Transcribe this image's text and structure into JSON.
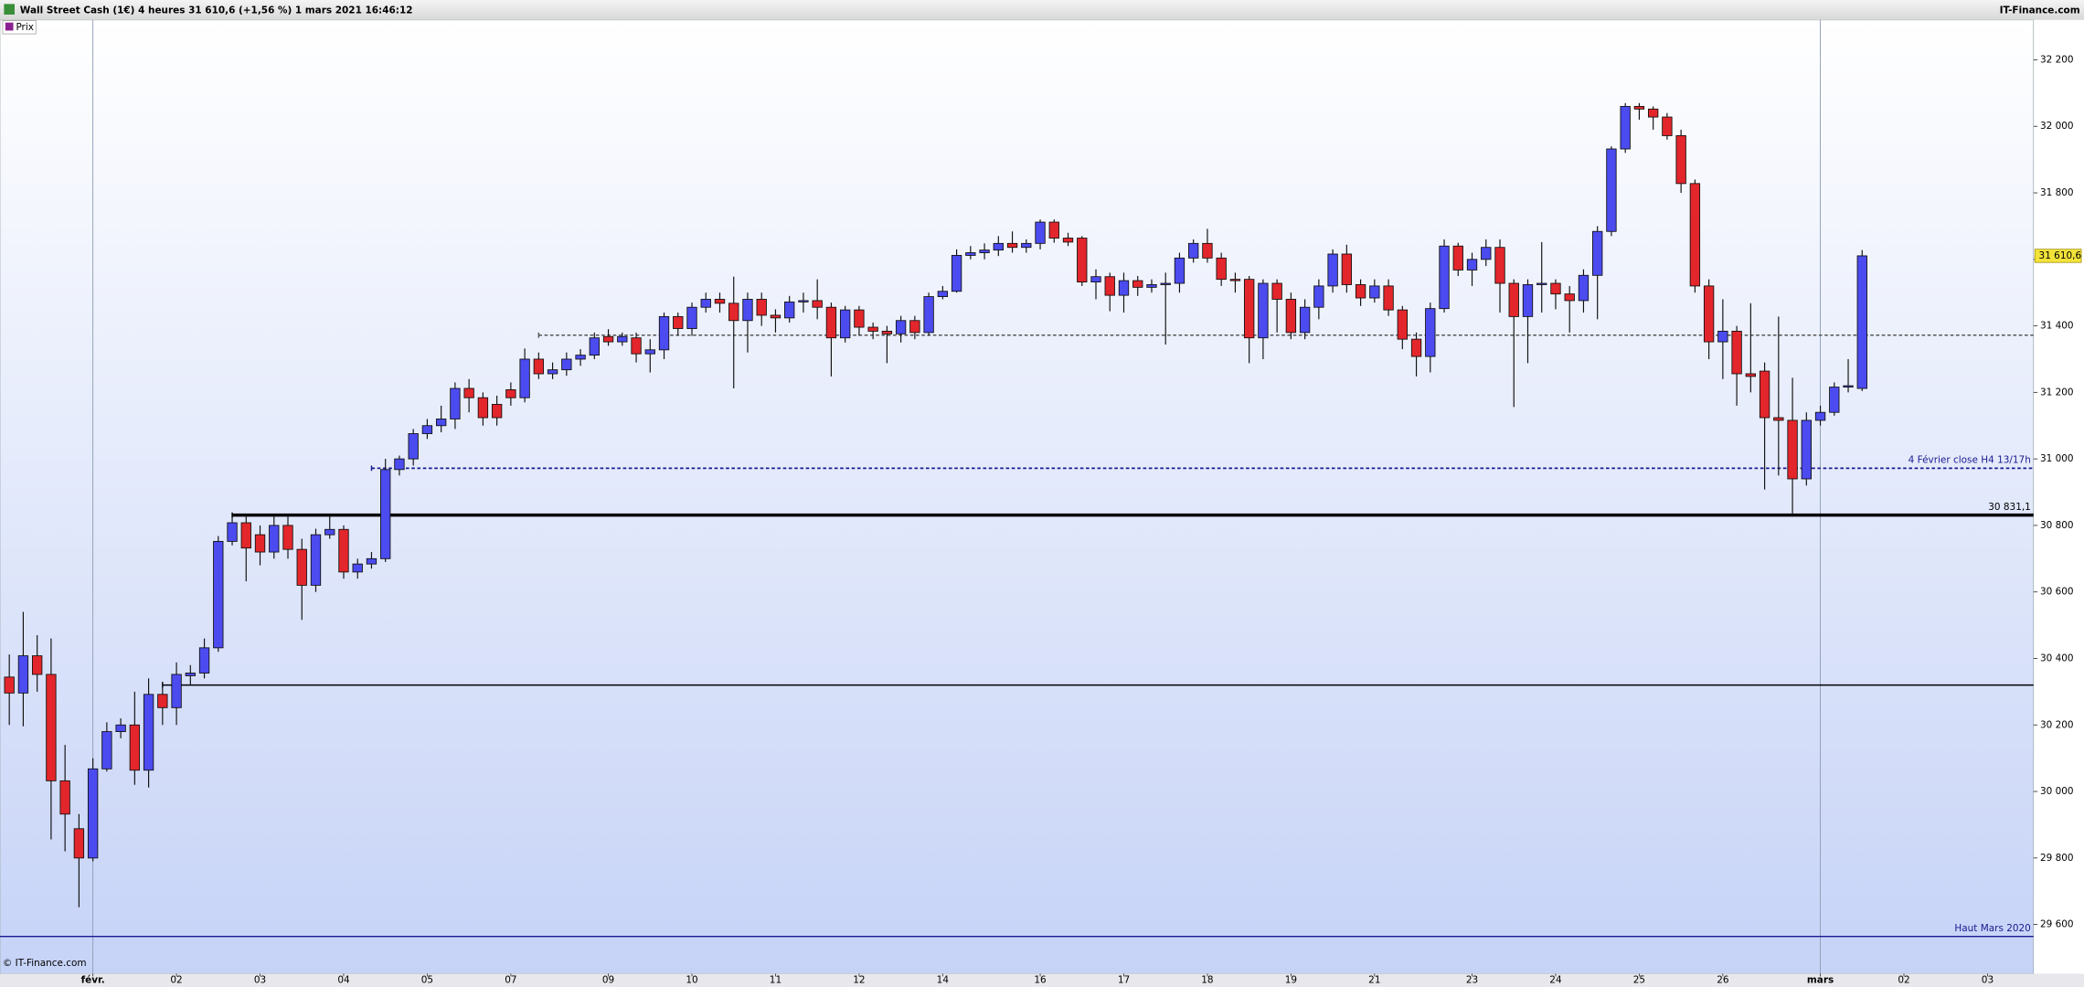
{
  "chart_data": {
    "type": "candlestick",
    "title": "Wall Street Cash (1€) 4 heures 31 610,6 (+1,56 %) 1 mars 2021 16:46:12",
    "brand": "IT-Finance.com",
    "footer": "© IT-Finance.com",
    "legend": "Prix",
    "up_color": "#4b4bf0",
    "down_color": "#e3262b",
    "xlim": [
      -0.668,
      145.3
    ],
    "ylim": [
      29452,
      32320
    ],
    "xticks": [
      {
        "value": 6,
        "label": "févr."
      },
      {
        "value": 12,
        "label": "02"
      },
      {
        "value": 18,
        "label": "03"
      },
      {
        "value": 24,
        "label": "04"
      },
      {
        "value": 30,
        "label": "05"
      },
      {
        "value": 36,
        "label": "07"
      },
      {
        "value": 43,
        "label": "09"
      },
      {
        "value": 49,
        "label": "10"
      },
      {
        "value": 55,
        "label": "11"
      },
      {
        "value": 61,
        "label": "12"
      },
      {
        "value": 67,
        "label": "14"
      },
      {
        "value": 74,
        "label": "16"
      },
      {
        "value": 80,
        "label": "17"
      },
      {
        "value": 86,
        "label": "18"
      },
      {
        "value": 92,
        "label": "19"
      },
      {
        "value": 98,
        "label": "21"
      },
      {
        "value": 105,
        "label": "23"
      },
      {
        "value": 111,
        "label": "24"
      },
      {
        "value": 117,
        "label": "25"
      },
      {
        "value": 123,
        "label": "26"
      },
      {
        "value": 130,
        "label": "mars"
      },
      {
        "value": 136,
        "label": "02"
      },
      {
        "value": 142,
        "label": "03"
      }
    ],
    "yticks": [
      {
        "value": 29600,
        "label": "29 600"
      },
      {
        "value": 29800,
        "label": "29 800"
      },
      {
        "value": 30000,
        "label": "30 000"
      },
      {
        "value": 30200,
        "label": "30 200"
      },
      {
        "value": 30400,
        "label": "30 400"
      },
      {
        "value": 30600,
        "label": "30 600"
      },
      {
        "value": 30800,
        "label": "30 800"
      },
      {
        "value": 31000,
        "label": "31 000"
      },
      {
        "value": 31200,
        "label": "31 200"
      },
      {
        "value": 31400,
        "label": "31 400"
      },
      {
        "value": 31600,
        "label": "31 600"
      },
      {
        "value": 31800,
        "label": "31 800"
      },
      {
        "value": 32000,
        "label": "32 000"
      },
      {
        "value": 32200,
        "label": "32 200"
      }
    ],
    "last_price": {
      "value": 31610.6,
      "label": "31 610,6"
    },
    "lines": [
      {
        "value": 31372,
        "start": 38,
        "style": "dashed",
        "color": "#555555"
      },
      {
        "value": 30972,
        "start": 26,
        "style": "dashed",
        "color": "#1a1a90",
        "label": "4 Février  close H4 13/17h"
      },
      {
        "value": 30831.1,
        "start": 16,
        "style": "thick",
        "color": "#000000",
        "label": "30 831,1"
      },
      {
        "value": 30320,
        "start": 11,
        "style": "solid",
        "color": "#000000"
      },
      {
        "value": 29564,
        "style": "solid",
        "color": "#1a1a90",
        "label": "Haut Mars 2020"
      }
    ],
    "ohlc": [
      [
        30344,
        30412,
        30200,
        30296
      ],
      [
        30296,
        30540,
        30196,
        30408
      ],
      [
        30408,
        30470,
        30300,
        30352
      ],
      [
        30352,
        30460,
        29856,
        30032
      ],
      [
        30032,
        30140,
        29820,
        29932
      ],
      [
        29888,
        29932,
        29652,
        29800
      ],
      [
        29800,
        30100,
        29790,
        30068
      ],
      [
        30068,
        30208,
        30060,
        30180
      ],
      [
        30180,
        30220,
        30160,
        30200
      ],
      [
        30200,
        30300,
        30020,
        30064
      ],
      [
        30064,
        30340,
        30012,
        30292
      ],
      [
        30292,
        30330,
        30200,
        30252
      ],
      [
        30252,
        30388,
        30200,
        30352
      ],
      [
        30348,
        30380,
        30320,
        30356
      ],
      [
        30356,
        30460,
        30340,
        30432
      ],
      [
        30432,
        30768,
        30420,
        30752
      ],
      [
        30752,
        30828,
        30740,
        30808
      ],
      [
        30808,
        30830,
        30632,
        30732
      ],
      [
        30772,
        30800,
        30680,
        30720
      ],
      [
        30720,
        30830,
        30700,
        30800
      ],
      [
        30800,
        30830,
        30700,
        30728
      ],
      [
        30728,
        30760,
        30516,
        30620
      ],
      [
        30620,
        30790,
        30600,
        30772
      ],
      [
        30772,
        30828,
        30760,
        30788
      ],
      [
        30788,
        30800,
        30640,
        30660
      ],
      [
        30660,
        30700,
        30640,
        30684
      ],
      [
        30684,
        30720,
        30670,
        30700
      ],
      [
        30700,
        31000,
        30690,
        30968
      ],
      [
        30968,
        31010,
        30950,
        31000
      ],
      [
        31000,
        31090,
        30980,
        31076
      ],
      [
        31076,
        31120,
        31060,
        31100
      ],
      [
        31100,
        31160,
        31080,
        31120
      ],
      [
        31120,
        31230,
        31090,
        31212
      ],
      [
        31212,
        31240,
        31140,
        31184
      ],
      [
        31184,
        31200,
        31100,
        31124
      ],
      [
        31164,
        31190,
        31100,
        31124
      ],
      [
        31208,
        31230,
        31160,
        31184
      ],
      [
        31184,
        31332,
        31170,
        31300
      ],
      [
        31300,
        31320,
        31240,
        31256
      ],
      [
        31256,
        31290,
        31240,
        31268
      ],
      [
        31268,
        31320,
        31250,
        31300
      ],
      [
        31300,
        31330,
        31280,
        31312
      ],
      [
        31312,
        31380,
        31300,
        31364
      ],
      [
        31368,
        31390,
        31340,
        31352
      ],
      [
        31352,
        31380,
        31340,
        31368
      ],
      [
        31364,
        31380,
        31290,
        31316
      ],
      [
        31316,
        31360,
        31260,
        31328
      ],
      [
        31328,
        31440,
        31300,
        31428
      ],
      [
        31428,
        31440,
        31370,
        31392
      ],
      [
        31392,
        31470,
        31370,
        31456
      ],
      [
        31456,
        31500,
        31440,
        31480
      ],
      [
        31480,
        31500,
        31440,
        31468
      ],
      [
        31468,
        31548,
        31212,
        31416
      ],
      [
        31416,
        31500,
        31320,
        31480
      ],
      [
        31480,
        31500,
        31400,
        31432
      ],
      [
        31432,
        31450,
        31380,
        31424
      ],
      [
        31424,
        31490,
        31410,
        31472
      ],
      [
        31472,
        31500,
        31440,
        31476
      ],
      [
        31476,
        31540,
        31420,
        31456
      ],
      [
        31456,
        31470,
        31248,
        31364
      ],
      [
        31364,
        31460,
        31350,
        31448
      ],
      [
        31448,
        31460,
        31370,
        31396
      ],
      [
        31396,
        31410,
        31360,
        31384
      ],
      [
        31384,
        31400,
        31288,
        31376
      ],
      [
        31376,
        31430,
        31350,
        31416
      ],
      [
        31416,
        31430,
        31360,
        31380
      ],
      [
        31380,
        31500,
        31370,
        31488
      ],
      [
        31488,
        31520,
        31480,
        31504
      ],
      [
        31504,
        31630,
        31500,
        31612
      ],
      [
        31612,
        31640,
        31600,
        31620
      ],
      [
        31620,
        31648,
        31600,
        31628
      ],
      [
        31628,
        31670,
        31610,
        31648
      ],
      [
        31648,
        31684,
        31620,
        31636
      ],
      [
        31636,
        31660,
        31620,
        31648
      ],
      [
        31648,
        31720,
        31630,
        31712
      ],
      [
        31712,
        31720,
        31650,
        31664
      ],
      [
        31664,
        31680,
        31640,
        31652
      ],
      [
        31664,
        31670,
        31520,
        31532
      ],
      [
        31532,
        31570,
        31480,
        31548
      ],
      [
        31548,
        31560,
        31444,
        31492
      ],
      [
        31492,
        31560,
        31440,
        31536
      ],
      [
        31536,
        31550,
        31490,
        31516
      ],
      [
        31516,
        31540,
        31500,
        31524
      ],
      [
        31524,
        31560,
        31344,
        31528
      ],
      [
        31528,
        31620,
        31500,
        31604
      ],
      [
        31604,
        31660,
        31590,
        31648
      ],
      [
        31648,
        31692,
        31590,
        31604
      ],
      [
        31604,
        31620,
        31520,
        31540
      ],
      [
        31540,
        31560,
        31500,
        31536
      ],
      [
        31540,
        31550,
        31288,
        31364
      ],
      [
        31364,
        31540,
        31300,
        31528
      ],
      [
        31528,
        31540,
        31380,
        31480
      ],
      [
        31480,
        31500,
        31360,
        31380
      ],
      [
        31380,
        31480,
        31360,
        31456
      ],
      [
        31456,
        31540,
        31420,
        31520
      ],
      [
        31520,
        31630,
        31500,
        31616
      ],
      [
        31616,
        31644,
        31500,
        31524
      ],
      [
        31524,
        31540,
        31460,
        31484
      ],
      [
        31484,
        31540,
        31470,
        31520
      ],
      [
        31520,
        31540,
        31430,
        31448
      ],
      [
        31448,
        31460,
        31330,
        31360
      ],
      [
        31360,
        31380,
        31248,
        31308
      ],
      [
        31308,
        31470,
        31260,
        31452
      ],
      [
        31452,
        31660,
        31440,
        31640
      ],
      [
        31640,
        31650,
        31550,
        31568
      ],
      [
        31568,
        31620,
        31520,
        31600
      ],
      [
        31600,
        31660,
        31580,
        31636
      ],
      [
        31636,
        31660,
        31440,
        31528
      ],
      [
        31528,
        31540,
        31156,
        31428
      ],
      [
        31428,
        31540,
        31288,
        31524
      ],
      [
        31524,
        31652,
        31440,
        31528
      ],
      [
        31528,
        31540,
        31450,
        31496
      ],
      [
        31496,
        31520,
        31380,
        31476
      ],
      [
        31476,
        31570,
        31440,
        31552
      ],
      [
        31552,
        31700,
        31420,
        31684
      ],
      [
        31684,
        31940,
        31670,
        31932
      ],
      [
        31932,
        32070,
        31920,
        32060
      ],
      [
        32060,
        32070,
        32020,
        32052
      ],
      [
        32052,
        32060,
        31990,
        32028
      ],
      [
        32028,
        32040,
        31960,
        31972
      ],
      [
        31972,
        31990,
        31800,
        31828
      ],
      [
        31828,
        31840,
        31500,
        31520
      ],
      [
        31520,
        31540,
        31300,
        31352
      ],
      [
        31352,
        31480,
        31240,
        31384
      ],
      [
        31384,
        31400,
        31160,
        31256
      ],
      [
        31256,
        31468,
        31200,
        31248
      ],
      [
        31264,
        31290,
        30908,
        31124
      ],
      [
        31124,
        31428,
        30950,
        31116
      ],
      [
        31116,
        31244,
        30836,
        30940
      ],
      [
        30940,
        31140,
        30920,
        31116
      ],
      [
        31116,
        31160,
        31100,
        31140
      ],
      [
        31140,
        31230,
        31130,
        31216
      ],
      [
        31216,
        31300,
        31200,
        31220
      ],
      [
        31212,
        31628,
        31204,
        31610.6
      ]
    ]
  }
}
